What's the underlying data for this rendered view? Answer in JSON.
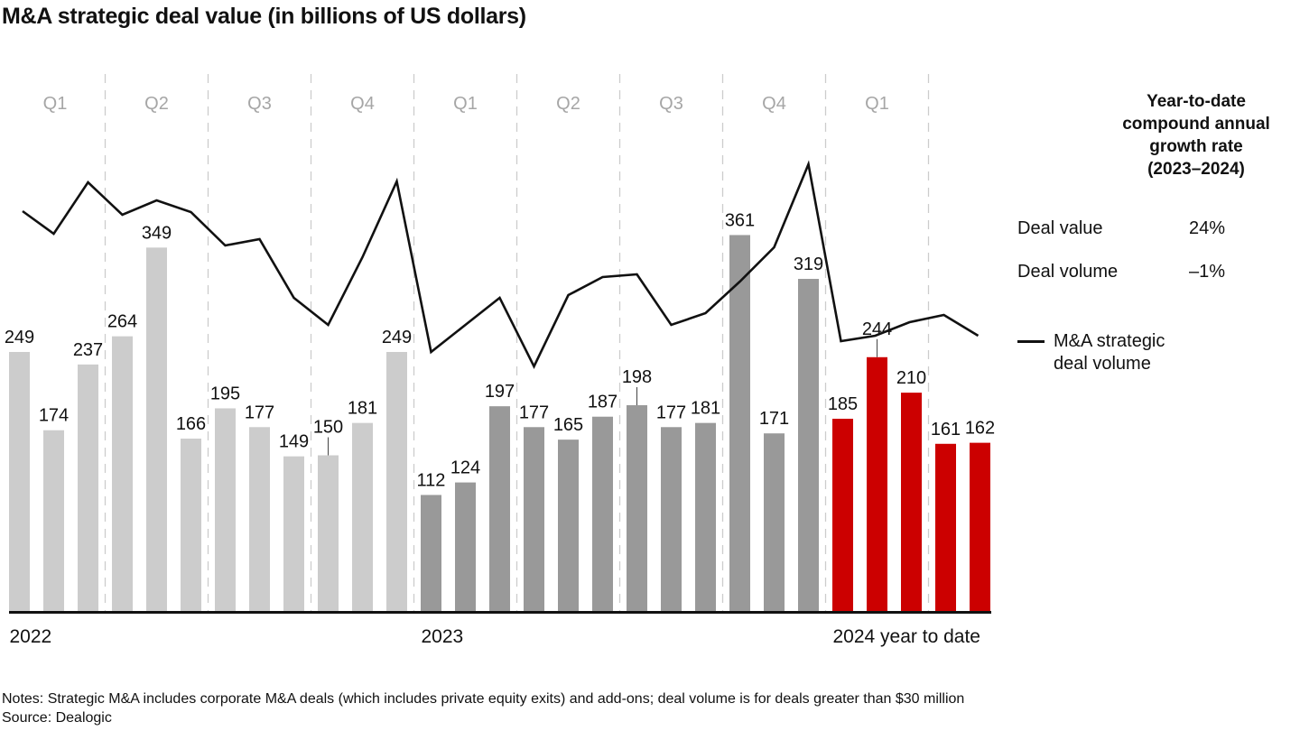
{
  "chart_data": {
    "type": "bar",
    "title": "M&A strategic deal value (in billions of US dollars)",
    "xlabel": "",
    "ylabel": "",
    "ylim": [
      0,
      370
    ],
    "grid": false,
    "colors": {
      "2022": "#cccccc",
      "2023": "#999999",
      "2024": "#cc0000",
      "line": "#111111",
      "divider": "#cccccc"
    },
    "year_labels": [
      {
        "label": "2022",
        "start_index": 0
      },
      {
        "label": "2023",
        "start_index": 12
      },
      {
        "label": "2024 year to date",
        "start_index": 24
      }
    ],
    "quarters": [
      {
        "label": "Q1",
        "start_index": 0
      },
      {
        "label": "Q2",
        "start_index": 3
      },
      {
        "label": "Q3",
        "start_index": 6
      },
      {
        "label": "Q4",
        "start_index": 9
      },
      {
        "label": "Q1",
        "start_index": 12
      },
      {
        "label": "Q2",
        "start_index": 15
      },
      {
        "label": "Q3",
        "start_index": 18
      },
      {
        "label": "Q4",
        "start_index": 21
      },
      {
        "label": "Q1",
        "start_index": 24
      }
    ],
    "series": [
      {
        "name": "M&A strategic deal value",
        "kind": "bar",
        "values": [
          249,
          174,
          237,
          264,
          349,
          166,
          195,
          177,
          149,
          150,
          181,
          249,
          112,
          124,
          197,
          177,
          165,
          187,
          198,
          177,
          181,
          361,
          171,
          319,
          185,
          244,
          210,
          161,
          162
        ],
        "years": [
          "2022",
          "2022",
          "2022",
          "2022",
          "2022",
          "2022",
          "2022",
          "2022",
          "2022",
          "2022",
          "2022",
          "2022",
          "2023",
          "2023",
          "2023",
          "2023",
          "2023",
          "2023",
          "2023",
          "2023",
          "2023",
          "2023",
          "2023",
          "2023",
          "2024",
          "2024",
          "2024",
          "2024",
          "2024"
        ],
        "labels": [
          "249",
          "174",
          "237",
          "264",
          "349",
          "166",
          "195",
          "177",
          "149",
          "150",
          "181",
          "249",
          "112",
          "124",
          "197",
          "177",
          "165",
          "187",
          "198",
          "177",
          "181",
          "361",
          "171",
          "319",
          "185",
          "244",
          "210",
          "161",
          "162"
        ],
        "leader_lines": [
          9,
          18,
          25
        ]
      },
      {
        "name": "M&A strategic deal volume",
        "kind": "line",
        "unit": "relative index (no axis shown)",
        "values": [
          88.8,
          83.8,
          95.2,
          88.0,
          91.2,
          88.6,
          81.2,
          82.6,
          69.6,
          63.6,
          78.6,
          95.4,
          57.6,
          63.6,
          69.6,
          54.4,
          70.2,
          74.2,
          74.8,
          63.6,
          66.2,
          73.2,
          80.8,
          99.2,
          60.0,
          61.2,
          64.2,
          65.8,
          61.2
        ]
      }
    ]
  },
  "side_panel": {
    "heading_lines": [
      "Year-to-date",
      "compound annual",
      "growth rate",
      "(2023–2024)"
    ],
    "stats": [
      {
        "label": "Deal value",
        "value": "24%"
      },
      {
        "label": "Deal volume",
        "value": "–1%"
      }
    ],
    "legend_label_lines": [
      "M&A strategic",
      "deal volume"
    ]
  },
  "notes": "Notes: Strategic M&A includes corporate M&A deals (which includes private equity exits) and add-ons; deal volume is for deals greater than $30 million",
  "source": "Source: Dealogic"
}
